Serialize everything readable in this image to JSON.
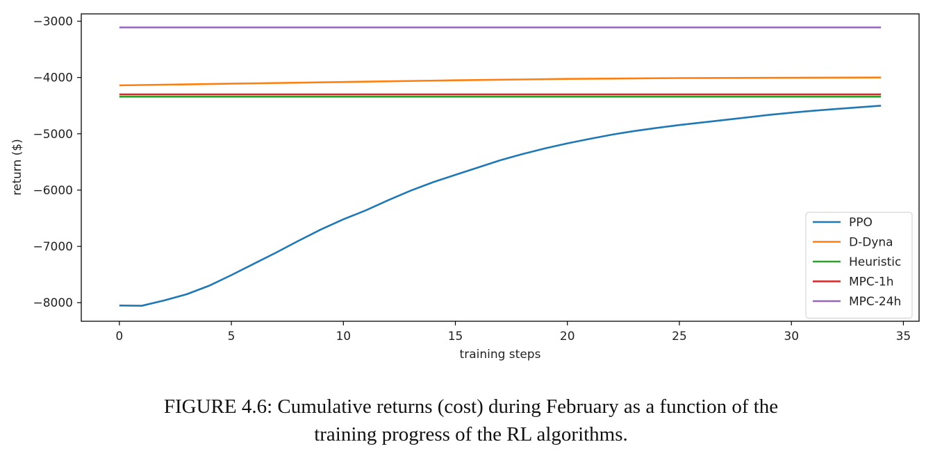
{
  "chart_data": {
    "type": "line",
    "xlabel": "training steps",
    "ylabel": "return ($)",
    "xlim": [
      -1.7,
      35.7
    ],
    "ylim": [
      -8330,
      -2870
    ],
    "xticks": [
      0,
      5,
      10,
      15,
      20,
      25,
      30,
      35
    ],
    "yticks": [
      -3000,
      -4000,
      -5000,
      -6000,
      -7000,
      -8000
    ],
    "xtick_labels": [
      "0",
      "5",
      "10",
      "15",
      "20",
      "25",
      "30",
      "35"
    ],
    "ytick_labels": [
      "−3000",
      "−4000",
      "−5000",
      "−6000",
      "−7000",
      "−8000"
    ],
    "grid": false,
    "legend_position": "lower right",
    "series": [
      {
        "name": "PPO",
        "color": "#1f77b4",
        "x": [
          0,
          1,
          2,
          3,
          4,
          5,
          6,
          7,
          8,
          9,
          10,
          11,
          12,
          13,
          14,
          15,
          16,
          17,
          18,
          19,
          20,
          21,
          22,
          23,
          24,
          25,
          26,
          27,
          28,
          29,
          30,
          31,
          32,
          33,
          34
        ],
        "y": [
          -8050,
          -8055,
          -7960,
          -7850,
          -7700,
          -7510,
          -7310,
          -7110,
          -6900,
          -6700,
          -6520,
          -6360,
          -6180,
          -6010,
          -5860,
          -5730,
          -5600,
          -5470,
          -5360,
          -5260,
          -5170,
          -5090,
          -5015,
          -4950,
          -4895,
          -4845,
          -4800,
          -4755,
          -4710,
          -4665,
          -4625,
          -4590,
          -4560,
          -4530,
          -4500
        ]
      },
      {
        "name": "D-Dyna",
        "color": "#ff7f0e",
        "x": [
          0,
          5,
          10,
          15,
          20,
          25,
          30,
          34
        ],
        "y": [
          -4140,
          -4110,
          -4080,
          -4050,
          -4025,
          -4010,
          -4005,
          -4000
        ]
      },
      {
        "name": "Heuristic",
        "color": "#2ca02c",
        "x": [
          0,
          34
        ],
        "y": [
          -4340,
          -4340
        ]
      },
      {
        "name": "MPC-1h",
        "color": "#d62728",
        "x": [
          0,
          34
        ],
        "y": [
          -4300,
          -4300
        ]
      },
      {
        "name": "MPC-24h",
        "color": "#9467bd",
        "x": [
          0,
          34
        ],
        "y": [
          -3110,
          -3110
        ]
      }
    ]
  },
  "caption": {
    "prefix": "F",
    "smallcaps": "IGURE",
    "number_line1": " 4.6: Cumulative returns (cost) during February as a function of the",
    "line2": "training progress of the RL algorithms."
  }
}
